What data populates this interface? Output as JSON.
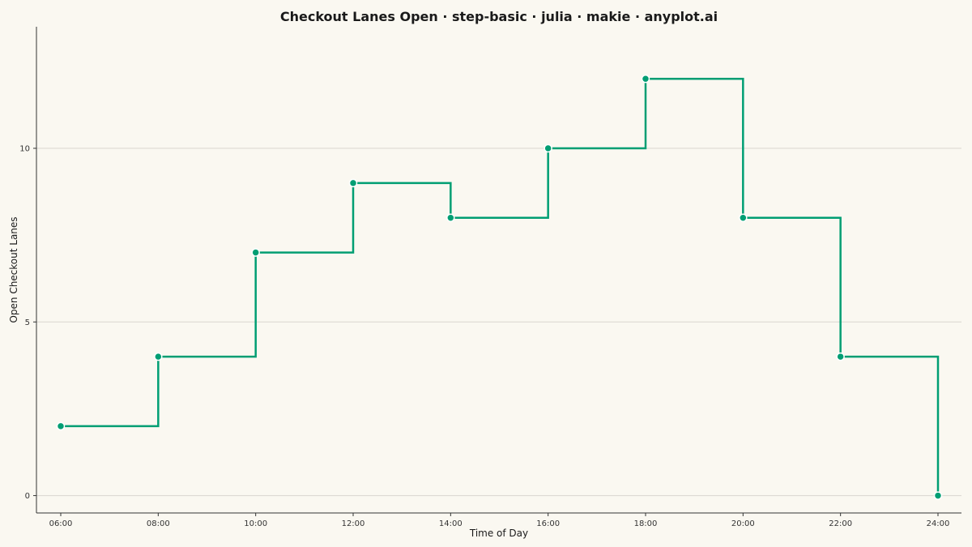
{
  "chart_data": {
    "type": "line",
    "style": "step-post",
    "title": "Checkout Lanes Open · step-basic · julia · makie · anyplot.ai",
    "xlabel": "Time of Day",
    "ylabel": "Open Checkout Lanes",
    "x": [
      "06:00",
      "08:00",
      "10:00",
      "12:00",
      "14:00",
      "16:00",
      "18:00",
      "20:00",
      "22:00",
      "24:00"
    ],
    "series": [
      {
        "values": [
          2,
          4,
          7,
          9,
          8,
          10,
          12,
          8,
          4,
          0
        ],
        "color": "#009E73"
      }
    ],
    "ylim": [
      -0.5,
      13.5
    ],
    "yticks": [
      0,
      5,
      10
    ],
    "grid": "horizontal",
    "legend": "none"
  }
}
